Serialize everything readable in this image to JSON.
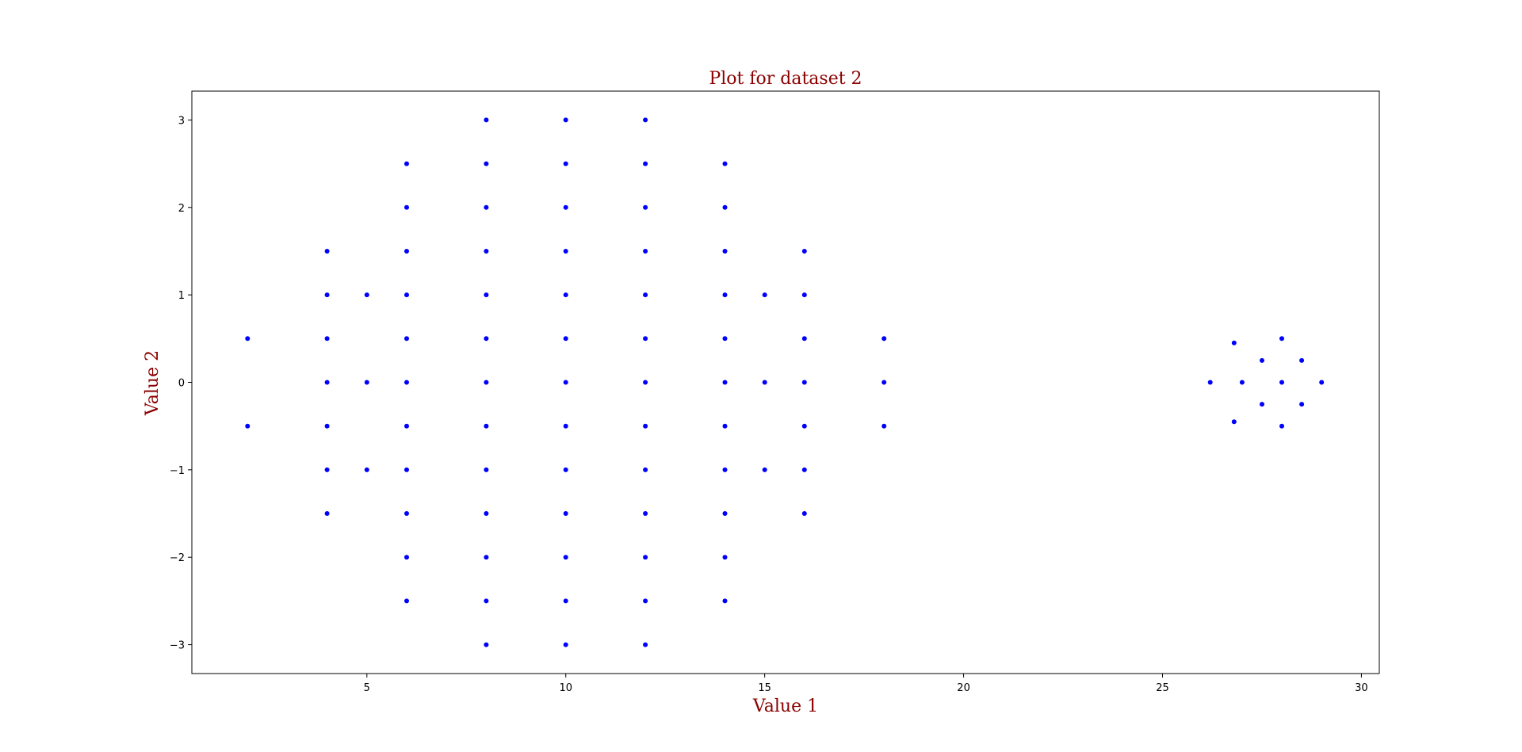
{
  "chart_data": {
    "type": "scatter",
    "title": "Plot for dataset 2",
    "xlabel": "Value 1",
    "ylabel": "Value 2",
    "xlim": [
      0.6,
      30.45
    ],
    "ylim": [
      -3.33,
      3.33
    ],
    "xticks": [
      5,
      10,
      15,
      20,
      25,
      30
    ],
    "yticks": [
      -3,
      -2,
      -1,
      0,
      1,
      2,
      3
    ],
    "xtick_labels": [
      "5",
      "10",
      "15",
      "20",
      "25",
      "30"
    ],
    "ytick_labels": [
      "−3",
      "−2",
      "−1",
      "0",
      "1",
      "2",
      "3"
    ],
    "grid": false,
    "legend": "none",
    "colors": {
      "points": "#0000ff",
      "text": "#8b0000",
      "axes": "#000000"
    },
    "points": [
      {
        "x": 2,
        "y": 0.5
      },
      {
        "x": 2,
        "y": -0.5
      },
      {
        "x": 4,
        "y": 1.5
      },
      {
        "x": 4,
        "y": 1
      },
      {
        "x": 4,
        "y": 0.5
      },
      {
        "x": 4,
        "y": 0
      },
      {
        "x": 4,
        "y": -0.5
      },
      {
        "x": 4,
        "y": -1
      },
      {
        "x": 4,
        "y": -1.5
      },
      {
        "x": 5,
        "y": 1
      },
      {
        "x": 5,
        "y": 0
      },
      {
        "x": 5,
        "y": -1
      },
      {
        "x": 6,
        "y": 2.5
      },
      {
        "x": 6,
        "y": 2
      },
      {
        "x": 6,
        "y": 1.5
      },
      {
        "x": 6,
        "y": 1
      },
      {
        "x": 6,
        "y": 0.5
      },
      {
        "x": 6,
        "y": 0
      },
      {
        "x": 6,
        "y": -0.5
      },
      {
        "x": 6,
        "y": -1
      },
      {
        "x": 6,
        "y": -1.5
      },
      {
        "x": 6,
        "y": -2
      },
      {
        "x": 6,
        "y": -2.5
      },
      {
        "x": 8,
        "y": 3
      },
      {
        "x": 8,
        "y": 2.5
      },
      {
        "x": 8,
        "y": 2
      },
      {
        "x": 8,
        "y": 1.5
      },
      {
        "x": 8,
        "y": 1
      },
      {
        "x": 8,
        "y": 0.5
      },
      {
        "x": 8,
        "y": 0
      },
      {
        "x": 8,
        "y": -0.5
      },
      {
        "x": 8,
        "y": -1
      },
      {
        "x": 8,
        "y": -1.5
      },
      {
        "x": 8,
        "y": -2
      },
      {
        "x": 8,
        "y": -2.5
      },
      {
        "x": 8,
        "y": -3
      },
      {
        "x": 10,
        "y": 3
      },
      {
        "x": 10,
        "y": 2.5
      },
      {
        "x": 10,
        "y": 2
      },
      {
        "x": 10,
        "y": 1.5
      },
      {
        "x": 10,
        "y": 1
      },
      {
        "x": 10,
        "y": 0.5
      },
      {
        "x": 10,
        "y": 0
      },
      {
        "x": 10,
        "y": -0.5
      },
      {
        "x": 10,
        "y": -1
      },
      {
        "x": 10,
        "y": -1.5
      },
      {
        "x": 10,
        "y": -2
      },
      {
        "x": 10,
        "y": -2.5
      },
      {
        "x": 10,
        "y": -3
      },
      {
        "x": 12,
        "y": 3
      },
      {
        "x": 12,
        "y": 2.5
      },
      {
        "x": 12,
        "y": 2
      },
      {
        "x": 12,
        "y": 1.5
      },
      {
        "x": 12,
        "y": 1
      },
      {
        "x": 12,
        "y": 0.5
      },
      {
        "x": 12,
        "y": 0
      },
      {
        "x": 12,
        "y": -0.5
      },
      {
        "x": 12,
        "y": -1
      },
      {
        "x": 12,
        "y": -1.5
      },
      {
        "x": 12,
        "y": -2
      },
      {
        "x": 12,
        "y": -2.5
      },
      {
        "x": 12,
        "y": -3
      },
      {
        "x": 14,
        "y": 2.5
      },
      {
        "x": 14,
        "y": 2
      },
      {
        "x": 14,
        "y": 1.5
      },
      {
        "x": 14,
        "y": 1
      },
      {
        "x": 14,
        "y": 0.5
      },
      {
        "x": 14,
        "y": 0
      },
      {
        "x": 14,
        "y": -0.5
      },
      {
        "x": 14,
        "y": -1
      },
      {
        "x": 14,
        "y": -1.5
      },
      {
        "x": 14,
        "y": -2
      },
      {
        "x": 14,
        "y": -2.5
      },
      {
        "x": 15,
        "y": 1
      },
      {
        "x": 15,
        "y": 0
      },
      {
        "x": 15,
        "y": -1
      },
      {
        "x": 16,
        "y": 1.5
      },
      {
        "x": 16,
        "y": 1
      },
      {
        "x": 16,
        "y": 0.5
      },
      {
        "x": 16,
        "y": 0
      },
      {
        "x": 16,
        "y": -0.5
      },
      {
        "x": 16,
        "y": -1
      },
      {
        "x": 16,
        "y": -1.5
      },
      {
        "x": 18,
        "y": 0.5
      },
      {
        "x": 18,
        "y": 0
      },
      {
        "x": 18,
        "y": -0.5
      },
      {
        "x": 26.2,
        "y": 0
      },
      {
        "x": 26.8,
        "y": 0.45
      },
      {
        "x": 26.8,
        "y": -0.45
      },
      {
        "x": 27,
        "y": 0
      },
      {
        "x": 27.5,
        "y": 0.25
      },
      {
        "x": 27.5,
        "y": -0.25
      },
      {
        "x": 28,
        "y": 0.5
      },
      {
        "x": 28,
        "y": 0
      },
      {
        "x": 28,
        "y": -0.5
      },
      {
        "x": 28.5,
        "y": 0.25
      },
      {
        "x": 28.5,
        "y": -0.25
      },
      {
        "x": 29,
        "y": 0
      }
    ]
  }
}
